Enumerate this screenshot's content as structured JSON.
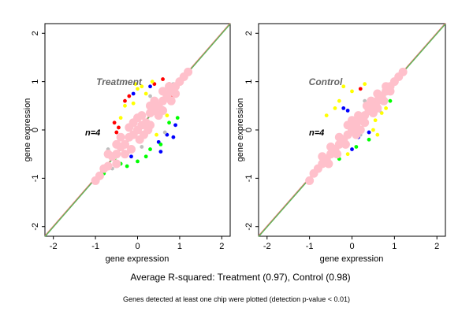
{
  "chart_data": [
    {
      "type": "scatter",
      "title": "Treatment",
      "n_label": "n=4",
      "xlabel": "gene expression",
      "ylabel": "gene expression",
      "xlim": [
        -2.2,
        2.2
      ],
      "ylim": [
        -2.2,
        2.2
      ],
      "xticks": [
        -2,
        -1,
        0,
        1,
        2
      ],
      "yticks": [
        -2,
        -1,
        0,
        1,
        2
      ],
      "grid": false,
      "reference_lines": [
        {
          "color": "#e0766e",
          "from": [
            -2.2,
            -2.2
          ],
          "to": [
            2.2,
            2.2
          ]
        },
        {
          "color": "#5ab85a",
          "from": [
            -2.2,
            -2.2
          ],
          "to": [
            2.2,
            2.2
          ]
        }
      ],
      "series": [
        {
          "color": "#ff0000",
          "points": [
            [
              0.6,
              1.05
            ],
            [
              0.75,
              0.95
            ],
            [
              0.4,
              0.95
            ],
            [
              -0.55,
              0.15
            ],
            [
              -0.45,
              0.05
            ],
            [
              0.85,
              0.7
            ],
            [
              0.95,
              0.75
            ],
            [
              -0.3,
              0.6
            ],
            [
              0.5,
              0.25
            ],
            [
              -0.5,
              -0.05
            ],
            [
              0.55,
              0.8
            ],
            [
              -0.2,
              0.7
            ]
          ]
        },
        {
          "color": "#0000ff",
          "points": [
            [
              0.5,
              -0.25
            ],
            [
              0.7,
              -0.1
            ],
            [
              0.55,
              -0.45
            ],
            [
              -0.25,
              -0.3
            ],
            [
              -0.1,
              0.75
            ],
            [
              0.3,
              0.9
            ],
            [
              0.9,
              0.1
            ],
            [
              0.85,
              -0.15
            ],
            [
              -0.15,
              -0.55
            ],
            [
              0.6,
              0.45
            ]
          ]
        },
        {
          "color": "#ffff00",
          "points": [
            [
              -0.3,
              0.5
            ],
            [
              0.0,
              0.85
            ],
            [
              0.1,
              0.9
            ],
            [
              -0.1,
              0.55
            ],
            [
              0.35,
              1.0
            ],
            [
              0.7,
              0.3
            ],
            [
              -0.4,
              0.25
            ],
            [
              0.45,
              -0.1
            ],
            [
              0.2,
              0.75
            ],
            [
              -0.05,
              0.95
            ]
          ]
        },
        {
          "color": "#00ff00",
          "points": [
            [
              -0.8,
              -0.9
            ],
            [
              -0.4,
              -0.7
            ],
            [
              0.2,
              -0.55
            ],
            [
              0.55,
              -0.3
            ],
            [
              -0.55,
              -0.6
            ],
            [
              0.0,
              -0.65
            ],
            [
              0.75,
              0.15
            ],
            [
              0.3,
              -0.4
            ],
            [
              -0.25,
              -0.75
            ],
            [
              0.95,
              0.25
            ]
          ]
        },
        {
          "color": "#bebebe",
          "points": [
            [
              -0.7,
              -0.4
            ],
            [
              -0.2,
              -0.45
            ],
            [
              0.85,
              0.95
            ],
            [
              0.3,
              0.7
            ],
            [
              -0.6,
              -0.8
            ],
            [
              0.65,
              -0.05
            ],
            [
              0.1,
              -0.35
            ]
          ]
        },
        {
          "color": "#ffc0cb",
          "points": [
            [
              -1.0,
              -1.05
            ],
            [
              -0.9,
              -0.95
            ],
            [
              -0.8,
              -0.8
            ],
            [
              -0.7,
              -0.75
            ],
            [
              -0.6,
              -0.55
            ],
            [
              -0.5,
              -0.5
            ],
            [
              -0.4,
              -0.35
            ],
            [
              -0.3,
              -0.3
            ],
            [
              -0.2,
              -0.15
            ],
            [
              -0.1,
              -0.1
            ],
            [
              0.0,
              0.0
            ],
            [
              0.1,
              0.1
            ],
            [
              0.2,
              0.15
            ],
            [
              0.3,
              0.35
            ],
            [
              0.4,
              0.4
            ],
            [
              0.5,
              0.5
            ],
            [
              0.6,
              0.6
            ],
            [
              0.7,
              0.7
            ],
            [
              0.8,
              0.8
            ],
            [
              0.9,
              0.9
            ],
            [
              1.0,
              1.0
            ],
            [
              1.1,
              1.1
            ],
            [
              1.2,
              1.2
            ],
            [
              -0.5,
              -0.3
            ],
            [
              -0.3,
              -0.5
            ],
            [
              0.3,
              0.1
            ],
            [
              0.1,
              0.3
            ],
            [
              0.5,
              0.3
            ],
            [
              0.3,
              0.5
            ],
            [
              -0.1,
              0.15
            ],
            [
              0.15,
              -0.1
            ],
            [
              0.6,
              0.4
            ],
            [
              0.4,
              0.6
            ],
            [
              -0.4,
              -0.15
            ],
            [
              -0.15,
              -0.4
            ],
            [
              0.8,
              0.6
            ],
            [
              0.6,
              0.8
            ],
            [
              0.0,
              0.25
            ],
            [
              0.25,
              0.0
            ],
            [
              -0.7,
              -0.5
            ],
            [
              -0.5,
              -0.7
            ],
            [
              0.9,
              0.75
            ],
            [
              0.75,
              0.9
            ],
            [
              -0.2,
              0.05
            ],
            [
              0.05,
              -0.2
            ]
          ]
        }
      ]
    },
    {
      "type": "scatter",
      "title": "Control",
      "n_label": "n=4",
      "xlabel": "gene expression",
      "ylabel": "gene expression",
      "xlim": [
        -2.2,
        2.2
      ],
      "ylim": [
        -2.2,
        2.2
      ],
      "xticks": [
        -2,
        -1,
        0,
        1,
        2
      ],
      "yticks": [
        -2,
        -1,
        0,
        1,
        2
      ],
      "grid": false,
      "reference_lines": [
        {
          "color": "#e0766e",
          "from": [
            -2.2,
            -2.2
          ],
          "to": [
            2.2,
            2.2
          ]
        },
        {
          "color": "#5ab85a",
          "from": [
            -2.2,
            -2.2
          ],
          "to": [
            2.2,
            2.2
          ]
        }
      ],
      "series": [
        {
          "color": "#ff0000",
          "points": [
            [
              0.2,
              0.85
            ],
            [
              0.45,
              0.6
            ],
            [
              -0.3,
              -0.25
            ]
          ]
        },
        {
          "color": "#0000ff",
          "points": [
            [
              -0.2,
              0.45
            ],
            [
              0.0,
              -0.4
            ],
            [
              0.4,
              -0.05
            ],
            [
              0.15,
              -0.15
            ],
            [
              -0.1,
              0.4
            ],
            [
              0.6,
              0.75
            ]
          ]
        },
        {
          "color": "#ffff00",
          "points": [
            [
              -0.4,
              0.45
            ],
            [
              -0.3,
              0.6
            ],
            [
              0.55,
              0.2
            ],
            [
              0.7,
              0.35
            ],
            [
              -0.2,
              0.9
            ],
            [
              0.6,
              -0.1
            ],
            [
              0.3,
              0.95
            ],
            [
              -0.6,
              0.3
            ],
            [
              0.0,
              0.8
            ],
            [
              0.8,
              0.45
            ],
            [
              -0.1,
              -0.5
            ],
            [
              0.5,
              0.0
            ]
          ]
        },
        {
          "color": "#00ff00",
          "points": [
            [
              -0.6,
              -0.55
            ],
            [
              0.1,
              -0.35
            ],
            [
              -0.3,
              -0.6
            ],
            [
              0.4,
              -0.2
            ],
            [
              -0.45,
              -0.45
            ],
            [
              0.9,
              0.6
            ]
          ]
        },
        {
          "color": "#bebebe",
          "points": [
            [
              -0.5,
              -0.3
            ],
            [
              0.3,
              0.6
            ],
            [
              -0.75,
              -0.7
            ],
            [
              0.2,
              -0.1
            ],
            [
              0.65,
              0.4
            ]
          ]
        },
        {
          "color": "#ffc0cb",
          "points": [
            [
              -1.0,
              -1.05
            ],
            [
              -0.9,
              -0.9
            ],
            [
              -0.8,
              -0.8
            ],
            [
              -0.7,
              -0.7
            ],
            [
              -0.6,
              -0.6
            ],
            [
              -0.5,
              -0.5
            ],
            [
              -0.4,
              -0.4
            ],
            [
              -0.3,
              -0.3
            ],
            [
              -0.2,
              -0.2
            ],
            [
              -0.1,
              -0.1
            ],
            [
              0.0,
              0.0
            ],
            [
              0.1,
              0.1
            ],
            [
              0.2,
              0.2
            ],
            [
              0.3,
              0.3
            ],
            [
              0.4,
              0.4
            ],
            [
              0.5,
              0.5
            ],
            [
              0.6,
              0.6
            ],
            [
              0.7,
              0.7
            ],
            [
              0.8,
              0.8
            ],
            [
              0.9,
              0.9
            ],
            [
              1.0,
              1.0
            ],
            [
              1.1,
              1.1
            ],
            [
              1.2,
              1.2
            ],
            [
              -0.5,
              -0.35
            ],
            [
              -0.35,
              -0.5
            ],
            [
              0.3,
              0.15
            ],
            [
              0.15,
              0.3
            ],
            [
              0.5,
              0.35
            ],
            [
              0.35,
              0.5
            ],
            [
              -0.1,
              0.1
            ],
            [
              0.1,
              -0.1
            ],
            [
              0.6,
              0.45
            ],
            [
              0.45,
              0.6
            ],
            [
              -0.3,
              -0.15
            ],
            [
              -0.15,
              -0.3
            ],
            [
              0.75,
              0.6
            ],
            [
              0.6,
              0.75
            ],
            [
              0.0,
              0.2
            ],
            [
              0.2,
              0.0
            ],
            [
              -0.7,
              -0.55
            ],
            [
              -0.55,
              -0.7
            ],
            [
              0.9,
              0.8
            ],
            [
              0.8,
              0.9
            ]
          ]
        }
      ]
    }
  ],
  "summary": "Average R-squared: Treatment (0.97), Control (0.98)",
  "footnote": "Genes detected at least one chip were plotted (detection p-value < 0.01)"
}
